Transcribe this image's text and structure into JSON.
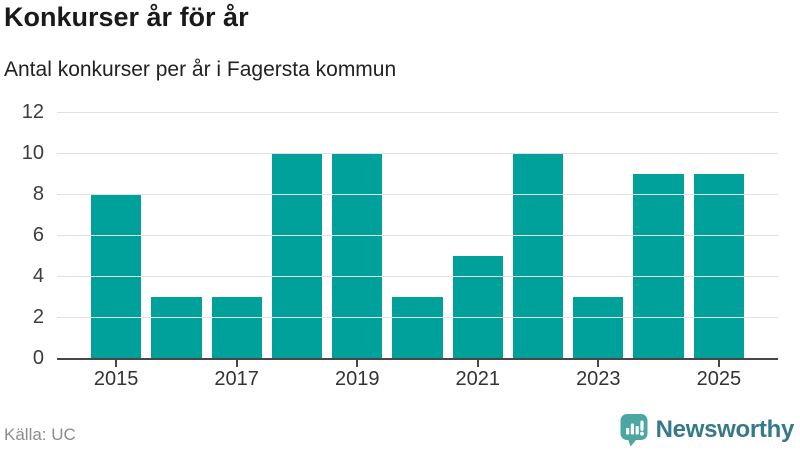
{
  "header": {
    "title": "Konkurser år för år",
    "subtitle": "Antal konkurser per år i Fagersta kommun"
  },
  "footer": {
    "source_label": "Källa: UC",
    "brand_name": "Newsworthy"
  },
  "colors": {
    "bar": "#00a09b",
    "gridline": "#e1e1e1",
    "axis": "#474747",
    "title": "#1a1a1a",
    "subtitle": "#222222",
    "tick_label": "#3d3d3d",
    "source": "#8c8c8c",
    "logo_icon": "#4ca7a2",
    "logo_text": "#35798a"
  },
  "chart_data": {
    "type": "bar",
    "categories": [
      2015,
      2016,
      2017,
      2018,
      2019,
      2020,
      2021,
      2022,
      2023,
      2024,
      2025
    ],
    "values": [
      8,
      3,
      3,
      10,
      10,
      3,
      5,
      10,
      3,
      9,
      9
    ],
    "title": "Konkurser år för år",
    "subtitle": "Antal konkurser per år i Fagersta kommun",
    "xlabel": "",
    "ylabel": "",
    "ylim": [
      0,
      12
    ],
    "yticks": [
      0,
      2,
      4,
      6,
      8,
      10,
      12
    ],
    "xtick_labels": [
      "2015",
      "2017",
      "2019",
      "2021",
      "2023",
      "2025"
    ],
    "grid": "horizontal",
    "legend": "none",
    "bar_color": "#00a09b"
  }
}
